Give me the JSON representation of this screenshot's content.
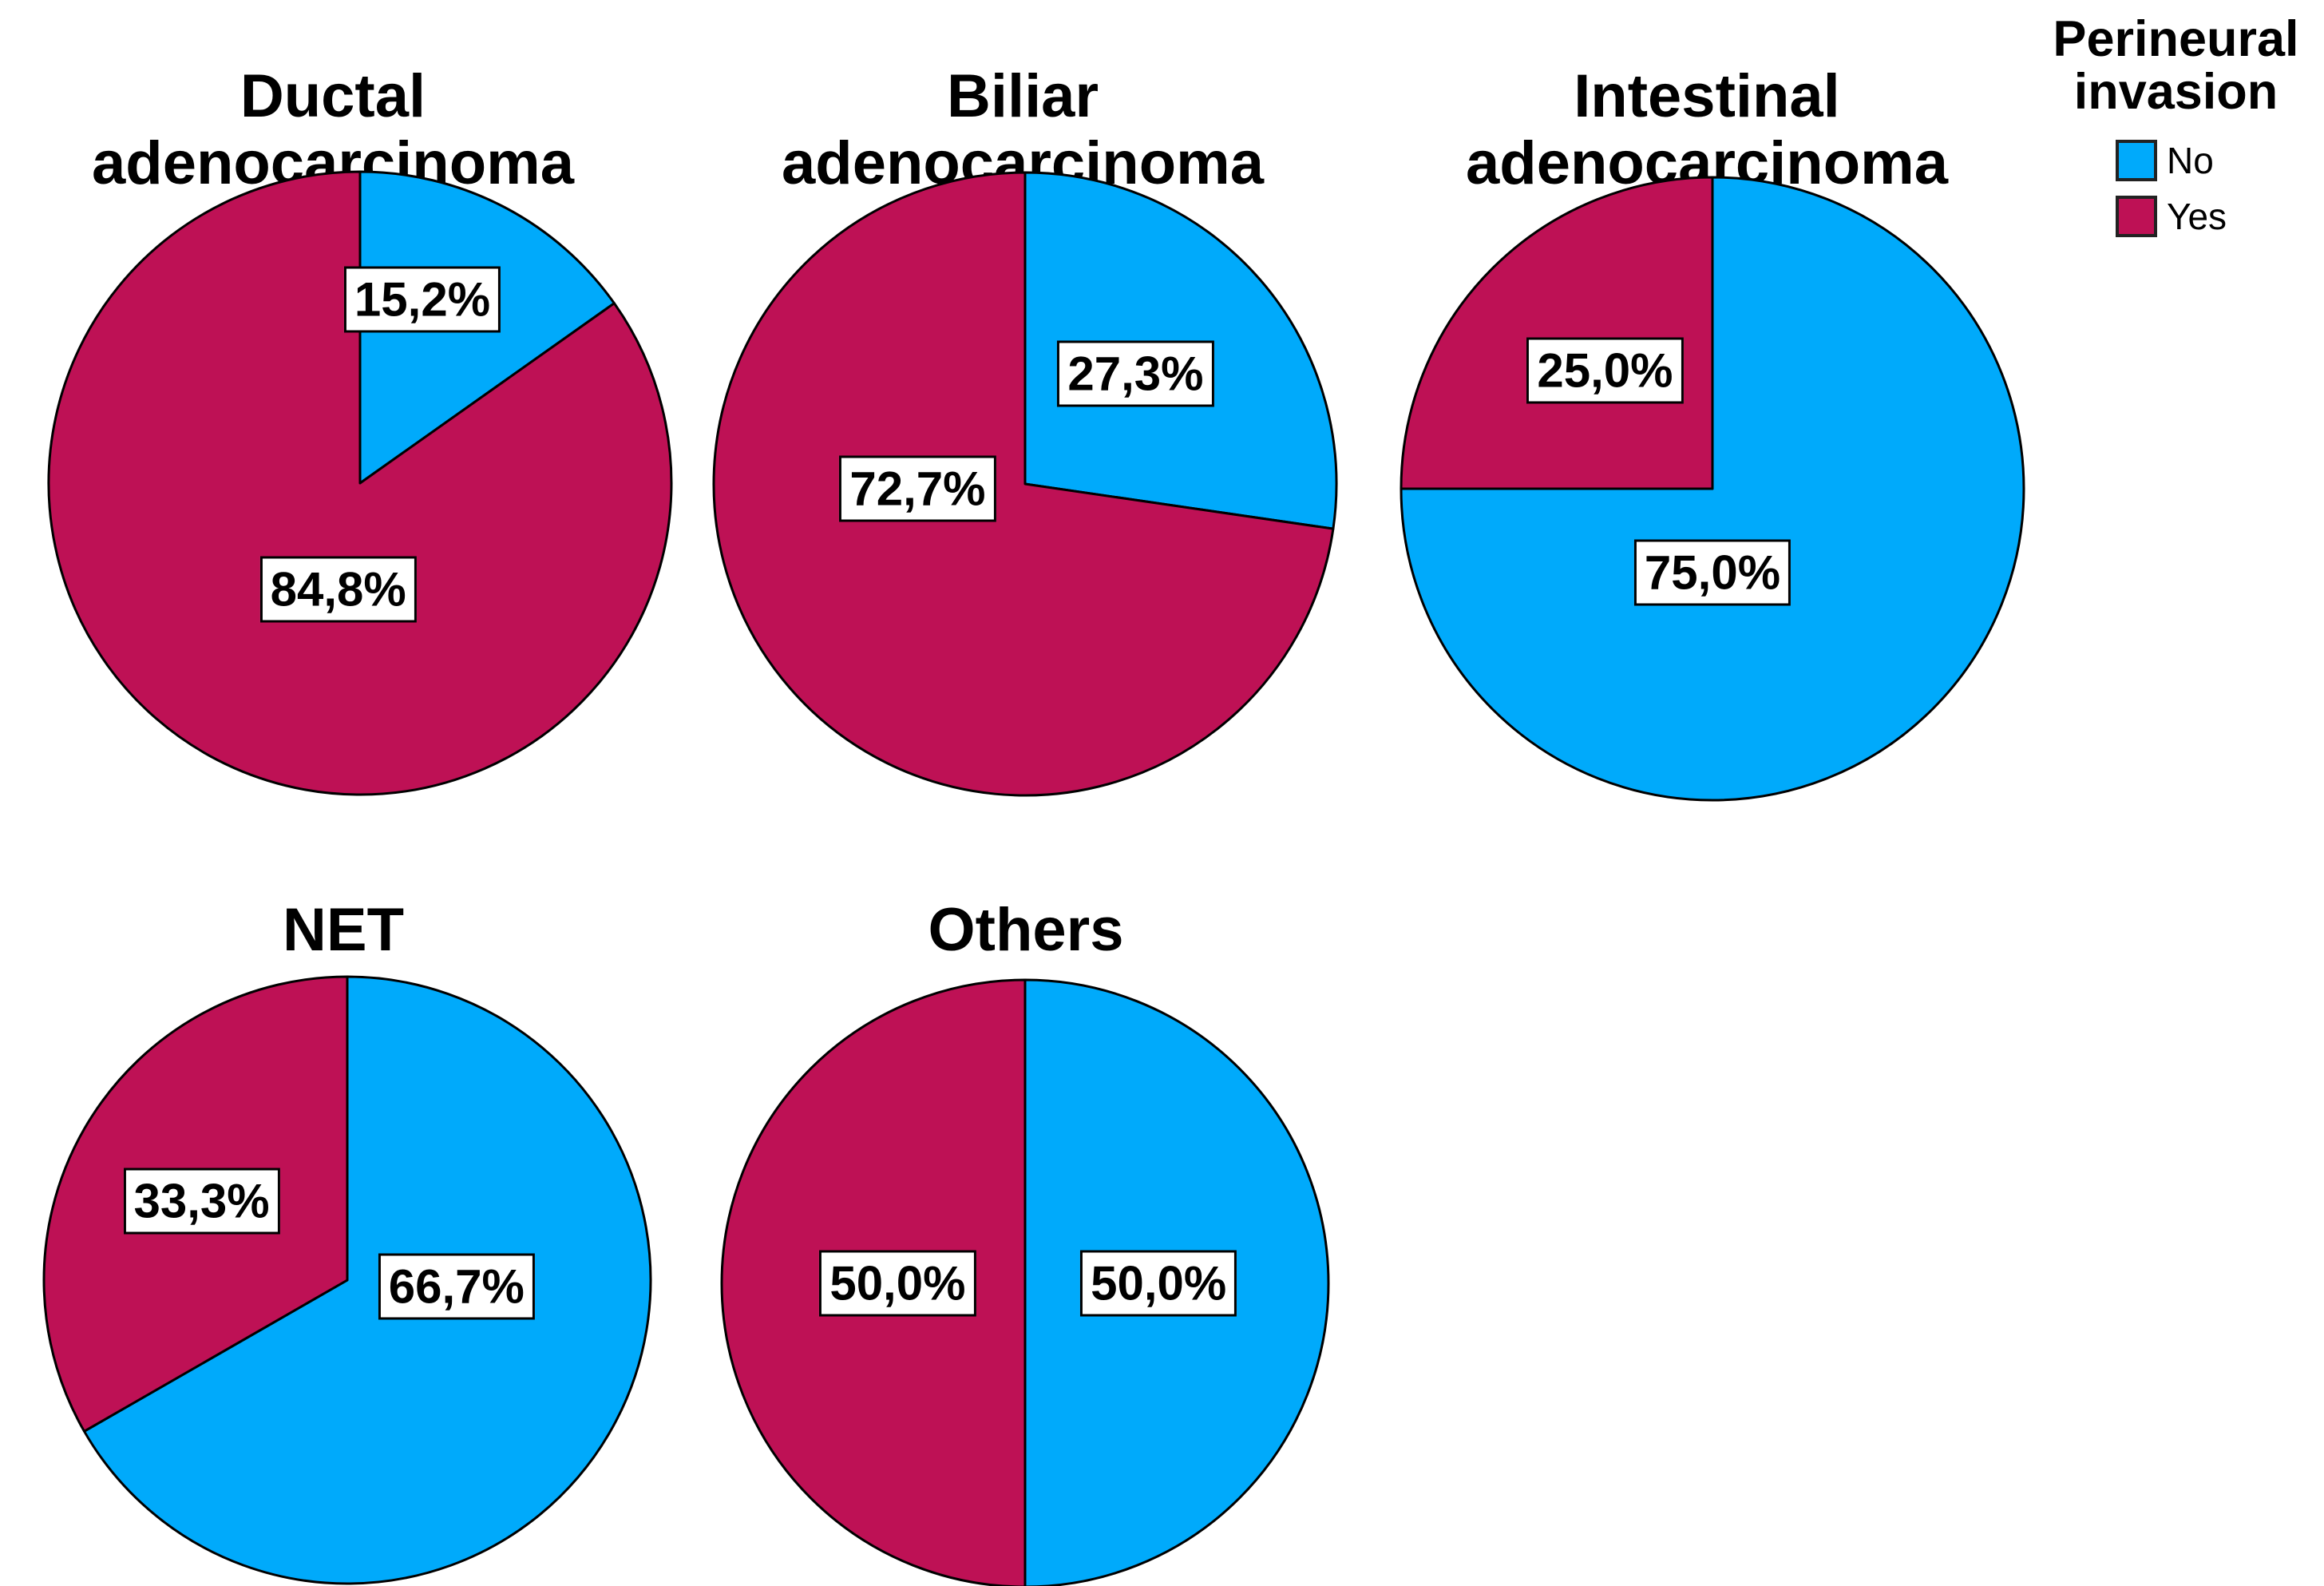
{
  "colors": {
    "no": "#00AAFB",
    "yes": "#BE1155",
    "outline": "#000000"
  },
  "legend": {
    "title_lines": [
      "Perineural",
      "invasion"
    ],
    "entries": [
      {
        "label": "No",
        "color_key": "no"
      },
      {
        "label": "Yes",
        "color_key": "yes"
      }
    ]
  },
  "chart_data": [
    {
      "type": "pie",
      "title": "Ductal adenocarcinoma",
      "title_lines": [
        "Ductal",
        "adenocarcinoma"
      ],
      "legend_title": "Perineural invasion",
      "slices": [
        {
          "name": "No",
          "value": 15.2,
          "label": "15,2%",
          "color_key": "no",
          "label_pos": [
            0.2,
            -0.59
          ]
        },
        {
          "name": "Yes",
          "value": 84.8,
          "label": "84,8%",
          "color_key": "yes",
          "label_pos": [
            -0.07,
            0.34
          ]
        }
      ]
    },
    {
      "type": "pie",
      "title": "Biliar adenocarcinoma",
      "title_lines": [
        "Biliar",
        "adenocarcinoma"
      ],
      "slices": [
        {
          "name": "No",
          "value": 27.3,
          "label": "27,3%",
          "color_key": "no",
          "label_pos": [
            0.355,
            -0.355
          ]
        },
        {
          "name": "Yes",
          "value": 72.7,
          "label": "72,7%",
          "color_key": "yes",
          "label_pos": [
            -0.345,
            0.015
          ]
        }
      ]
    },
    {
      "type": "pie",
      "title": "Intestinal adenocarcinoma",
      "title_lines": [
        "Intestinal",
        "adenocarcinoma"
      ],
      "slices": [
        {
          "name": "No",
          "value": 75.0,
          "label": "75,0%",
          "color_key": "no",
          "label_pos": [
            0.0,
            0.27
          ]
        },
        {
          "name": "Yes",
          "value": 25.0,
          "label": "25,0%",
          "color_key": "yes",
          "label_pos": [
            -0.345,
            -0.38
          ]
        }
      ]
    },
    {
      "type": "pie",
      "title": "NET",
      "title_lines": [
        "NET"
      ],
      "slices": [
        {
          "name": "No",
          "value": 66.7,
          "label": "66,7%",
          "color_key": "no",
          "label_pos": [
            0.36,
            0.02
          ]
        },
        {
          "name": "Yes",
          "value": 33.3,
          "label": "33,3%",
          "color_key": "yes",
          "label_pos": [
            -0.48,
            -0.26
          ]
        }
      ]
    },
    {
      "type": "pie",
      "title": "Others",
      "title_lines": [
        "Others"
      ],
      "slices": [
        {
          "name": "No",
          "value": 50.0,
          "label": "50,0%",
          "color_key": "no",
          "label_pos": [
            0.44,
            0.0
          ]
        },
        {
          "name": "Yes",
          "value": 50.0,
          "label": "50,0%",
          "color_key": "yes",
          "label_pos": [
            -0.42,
            0.0
          ]
        }
      ]
    }
  ]
}
